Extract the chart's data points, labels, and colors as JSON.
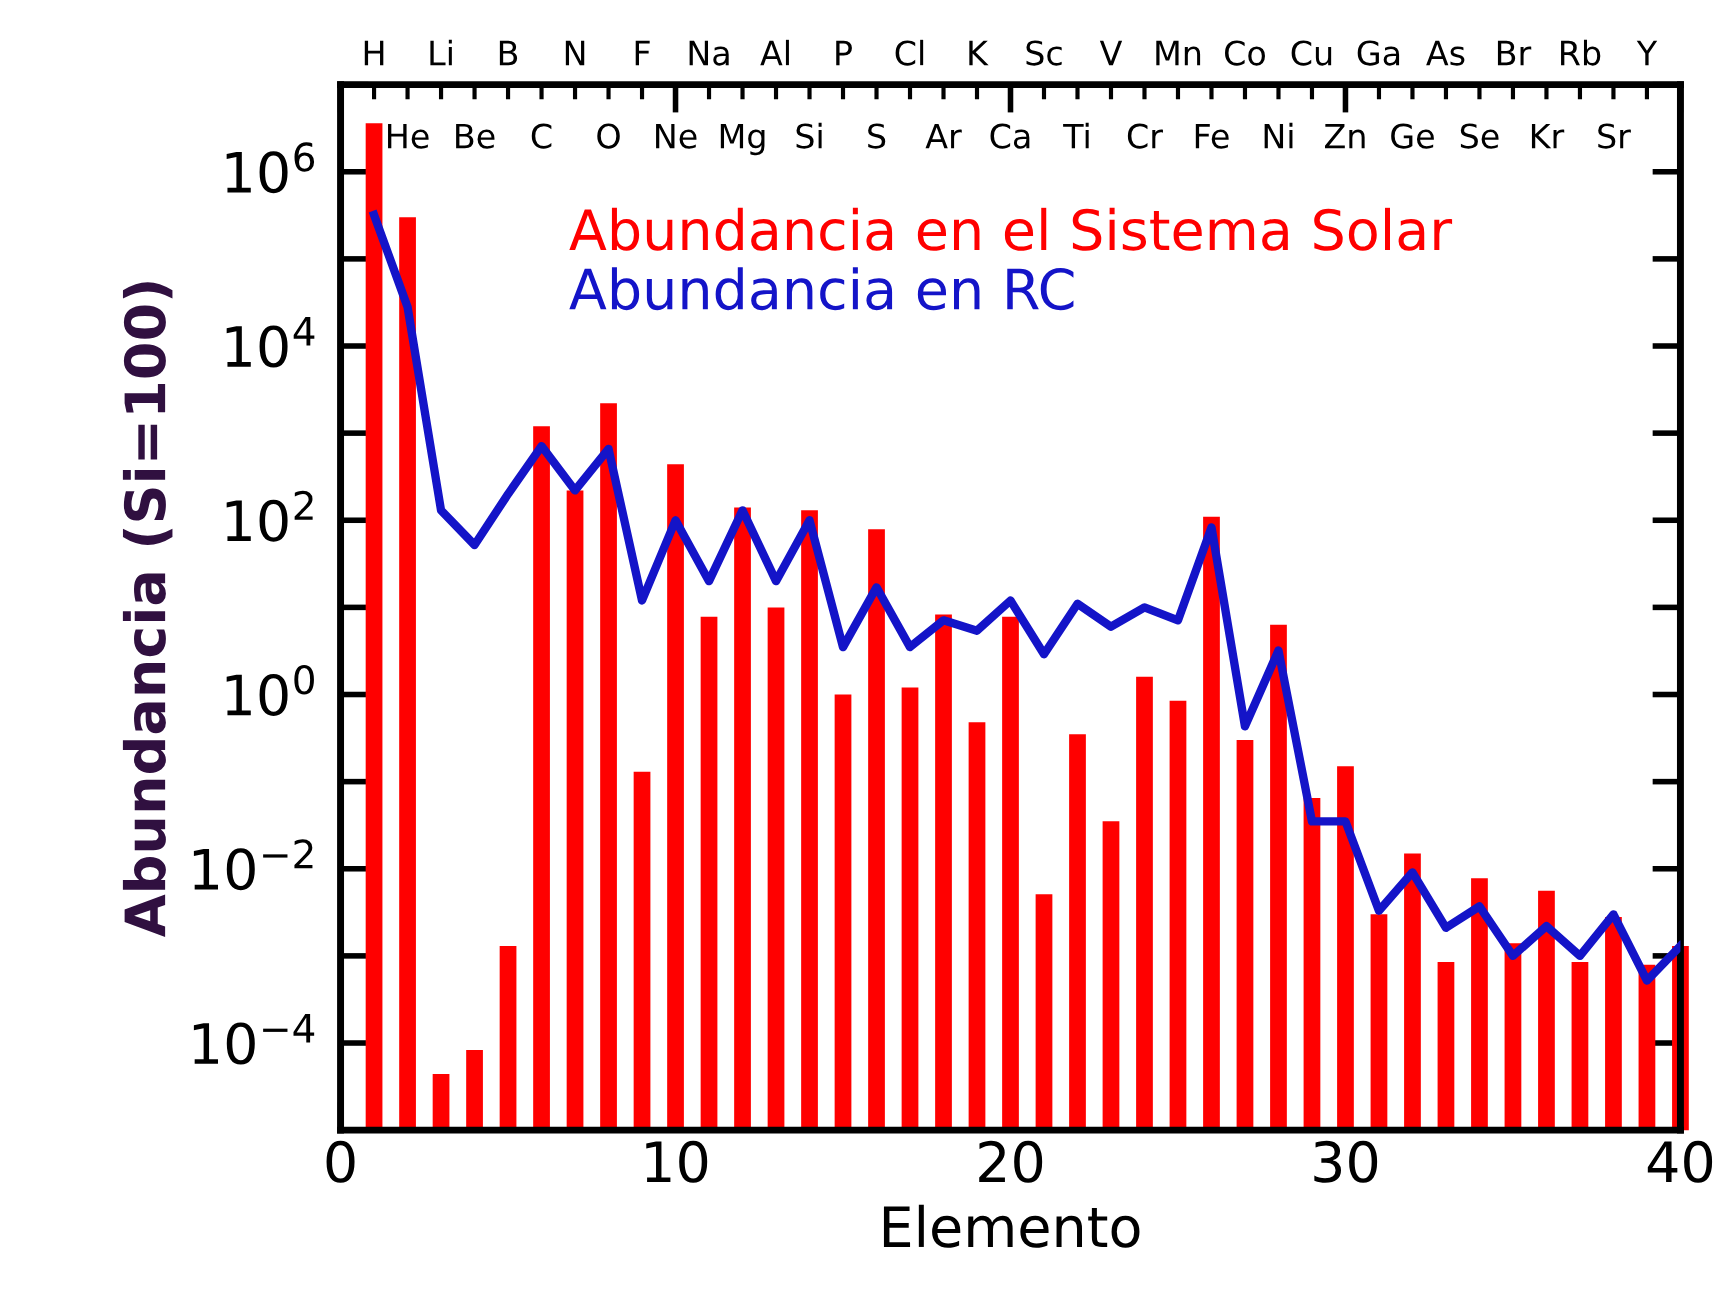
{
  "chart_data": {
    "type": "bar",
    "xlabel": "Elemento",
    "ylabel": "Abundancia (Si=100)",
    "x": [
      1,
      2,
      3,
      4,
      5,
      6,
      7,
      8,
      9,
      10,
      11,
      12,
      13,
      14,
      15,
      16,
      17,
      18,
      19,
      20,
      21,
      22,
      23,
      24,
      25,
      26,
      27,
      28,
      29,
      30,
      31,
      32,
      33,
      34,
      35,
      36,
      37,
      38,
      39,
      40
    ],
    "series": [
      {
        "name": "Abundancia en el Sistema Solar",
        "color": "#ff0000",
        "values": [
          3600000.0,
          300000.0,
          4.4e-05,
          8.3e-05,
          0.0013,
          1200.0,
          220,
          2200.0,
          0.13,
          440,
          7.8,
          140,
          10,
          130,
          1.0,
          79,
          1.2,
          8.3,
          0.48,
          7.8,
          0.0051,
          0.35,
          0.035,
          1.6,
          0.85,
          110,
          0.3,
          6.3,
          0.065,
          0.15,
          0.003,
          0.015,
          0.00085,
          0.0078,
          0.0014,
          0.0056,
          0.00085,
          0.0028,
          0.00079,
          0.0013
        ]
      },
      {
        "name": "Abundancia en RC",
        "type": "line",
        "color": "#1414c8",
        "values": [
          320000.0,
          28000.0,
          130,
          52,
          200,
          710,
          220,
          660,
          12,
          100,
          20,
          130,
          20,
          100,
          3.5,
          17,
          3.5,
          7.1,
          5.4,
          12,
          2.9,
          11,
          6.0,
          10,
          7.1,
          83,
          0.43,
          3.2,
          0.035,
          0.035,
          0.0033,
          0.0091,
          0.0021,
          0.0037,
          0.001,
          0.0022,
          0.001,
          0.003,
          0.00052,
          0.0013
        ]
      }
    ],
    "log": "y",
    "xlim": [
      0,
      40
    ],
    "xticks": [
      0,
      10,
      20,
      30,
      40
    ],
    "ylim": [
      1e-05,
      10000000.0
    ],
    "yticks": [
      {
        "value": 1e-05,
        "label": null
      },
      {
        "value": 0.0001,
        "label": "10$^{−4}$"
      },
      {
        "value": 0.001,
        "label": null
      },
      {
        "value": 0.01,
        "label": "10$^{−2}$"
      },
      {
        "value": 0.1,
        "label": null
      },
      {
        "value": 1,
        "label": "10$^{0}$"
      },
      {
        "value": 10,
        "label": null
      },
      {
        "value": 100,
        "label": "10$^{2}$"
      },
      {
        "value": 1000.0,
        "label": null
      },
      {
        "value": 10000.0,
        "label": "10$^{4}$"
      },
      {
        "value": 100000.0,
        "label": null
      },
      {
        "value": 1000000.0,
        "label": "10$^{6}$"
      },
      {
        "value": 10000000.0,
        "label": null
      }
    ],
    "annotations": [
      {
        "text": "H",
        "x": 1
      },
      {
        "text": "He",
        "x": 2
      },
      {
        "text": "Li",
        "x": 3
      },
      {
        "text": "Be",
        "x": 4
      },
      {
        "text": "B",
        "x": 5
      },
      {
        "text": "C",
        "x": 6
      },
      {
        "text": "N",
        "x": 7
      },
      {
        "text": "O",
        "x": 8
      },
      {
        "text": "F",
        "x": 9
      },
      {
        "text": "Ne",
        "x": 10
      },
      {
        "text": "Na",
        "x": 11
      },
      {
        "text": "Mg",
        "x": 12
      },
      {
        "text": "Al",
        "x": 13
      },
      {
        "text": "Si",
        "x": 14
      },
      {
        "text": "P",
        "x": 15
      },
      {
        "text": "S",
        "x": 16
      },
      {
        "text": "Cl",
        "x": 17
      },
      {
        "text": "Ar",
        "x": 18
      },
      {
        "text": "K",
        "x": 19
      },
      {
        "text": "Ca",
        "x": 20
      },
      {
        "text": "Sc",
        "x": 21
      },
      {
        "text": "Ti",
        "x": 22
      },
      {
        "text": "V",
        "x": 23
      },
      {
        "text": "Cr",
        "x": 24
      },
      {
        "text": "Mn",
        "x": 25
      },
      {
        "text": "Fe",
        "x": 26
      },
      {
        "text": "Co",
        "x": 27
      },
      {
        "text": "Ni",
        "x": 28
      },
      {
        "text": "Cu",
        "x": 29
      },
      {
        "text": "Zn",
        "x": 30
      },
      {
        "text": "Ga",
        "x": 31
      },
      {
        "text": "Ge",
        "x": 32
      },
      {
        "text": "As",
        "x": 33
      },
      {
        "text": "Se",
        "x": 34
      },
      {
        "text": "Br",
        "x": 35
      },
      {
        "text": "Kr",
        "x": 36
      },
      {
        "text": "Rb",
        "x": 37
      },
      {
        "text": "Sr",
        "x": 38
      },
      {
        "text": "Y",
        "x": 39
      }
    ],
    "legend": "top",
    "grid": false
  }
}
